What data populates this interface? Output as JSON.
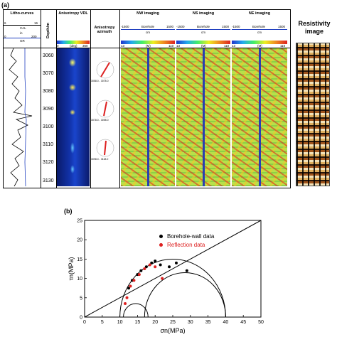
{
  "panel_a": {
    "label": "(a)",
    "tracks": {
      "litho": {
        "title": "Litho-curves",
        "cal_label": "CAL",
        "gr_label": "GR",
        "cal_unit": "in",
        "gr_unit": "gAPI",
        "cal_left": "6",
        "cal_right": "16",
        "gr_left": "0",
        "gr_right": "200"
      },
      "depth": {
        "title": "Depth/m",
        "ticks": [
          "3060",
          "3070",
          "3080",
          "3090",
          "3100",
          "3110",
          "3120",
          "3130"
        ]
      },
      "vdl": {
        "title": "Anisotropy VDL",
        "scale_left": "0",
        "scale_mid": "(deg)",
        "scale_right": "360"
      },
      "azimuth": {
        "title": "Anisotropy azimuth",
        "rose_labels": [
          "3058.0 - 3078.0",
          "3078.0 - 3098.0",
          "3098.0 - 3118.0"
        ]
      },
      "nw": {
        "title": "NW imaging",
        "scale_left": "-1500",
        "scale_mid": "Borehole",
        "scale_right": "1500",
        "unit": "cm",
        "cb_left": "13",
        "cb_mid": "(M)",
        "cb_right": "110"
      },
      "ns": {
        "title": "NS imaging",
        "scale_left": "-1500",
        "scale_mid": "Borehole",
        "scale_right": "1500",
        "unit": "cm",
        "cb_left": "13",
        "cb_mid": "(M)",
        "cb_right": "110"
      },
      "ne": {
        "title": "NE imaging",
        "scale_left": "-1500",
        "scale_mid": "Borehole",
        "scale_right": "1500",
        "unit": "cm",
        "cb_left": "13",
        "cb_mid": "(M)",
        "cb_right": "110"
      }
    },
    "resistivity": {
      "title_line1": "Resistivity",
      "title_line2": "image"
    }
  },
  "panel_b": {
    "label": "(b)",
    "chart_data": {
      "type": "scatter",
      "xlabel": "σn(MPa)",
      "ylabel": "τn(MPa)",
      "xlim": [
        0,
        50
      ],
      "ylim": [
        0,
        25
      ],
      "xticks": [
        "0",
        "5",
        "10",
        "15",
        "20",
        "25",
        "30",
        "35",
        "40",
        "45",
        "50"
      ],
      "yticks": [
        "0",
        "5",
        "10",
        "15",
        "20",
        "25"
      ],
      "series": [
        {
          "name": "Borehole-wall data",
          "color": "#000000",
          "x": [
            12.5,
            13.5,
            15,
            16,
            17.5,
            19,
            20,
            21.5,
            24,
            26,
            29
          ],
          "y": [
            7.5,
            9.5,
            11,
            12,
            13,
            14,
            14.5,
            13.5,
            13,
            14,
            12
          ]
        },
        {
          "name": "Reflection data",
          "color": "#dd2020",
          "x": [
            11.5,
            12,
            13,
            14,
            15.5,
            17,
            18.5,
            20,
            22
          ],
          "y": [
            3.5,
            5,
            8,
            9.5,
            11,
            12.5,
            13.5,
            13,
            10
          ]
        }
      ],
      "mohr_circles": [
        {
          "center": 25,
          "radius": 15
        },
        {
          "center": 14.5,
          "radius": 3.5
        },
        {
          "center": 28.5,
          "radius": 11.5
        }
      ],
      "failure_line": {
        "slope": 0.5,
        "intercept": 0
      }
    }
  }
}
